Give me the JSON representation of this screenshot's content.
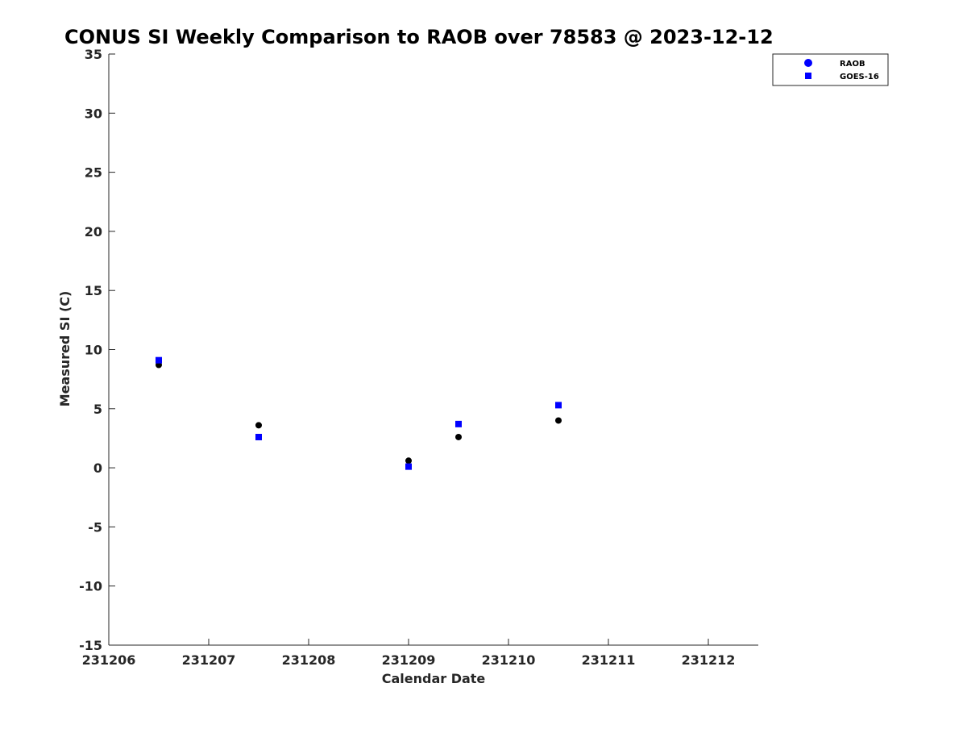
{
  "chart_data": {
    "type": "scatter",
    "title": "CONUS SI Weekly Comparison to RAOB over 78583 @ 2023-12-12",
    "xlabel": "Calendar Date",
    "ylabel": "Measured SI (C)",
    "xlim": [
      231206,
      231212.5
    ],
    "ylim": [
      -15,
      35
    ],
    "xticks": [
      231206,
      231207,
      231208,
      231209,
      231210,
      231211,
      231212
    ],
    "xtick_labels": [
      "231206",
      "231207",
      "231208",
      "231209",
      "231210",
      "231211",
      "231212"
    ],
    "yticks": [
      35,
      30,
      25,
      20,
      15,
      10,
      5,
      0,
      -5,
      -10,
      -15
    ],
    "ytick_labels": [
      "35",
      "30",
      "25",
      "20",
      "15",
      "10",
      "5",
      "0",
      "-5",
      "-10",
      "-15"
    ],
    "grid": false,
    "legend_position": "top-right",
    "series": [
      {
        "name": "RAOB",
        "marker": "circle",
        "color": "#000000",
        "legend_color": "#0000ff",
        "x": [
          231206.5,
          231207.5,
          231209.0,
          231209.5,
          231210.5
        ],
        "y": [
          8.7,
          3.6,
          0.6,
          2.6,
          4.0
        ]
      },
      {
        "name": "GOES-16",
        "marker": "square",
        "color": "#0000ff",
        "x": [
          231206.5,
          231207.5,
          231209.0,
          231209.5,
          231210.5
        ],
        "y": [
          9.1,
          2.6,
          0.1,
          3.7,
          5.3
        ]
      }
    ]
  }
}
